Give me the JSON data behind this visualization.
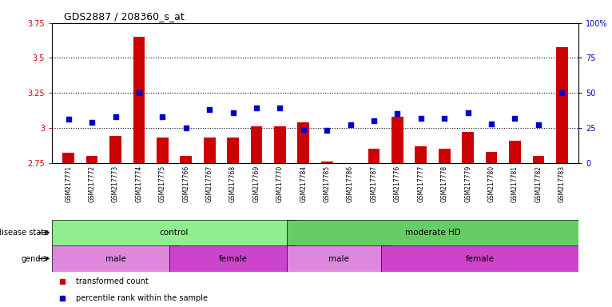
{
  "title": "GDS2887 / 208360_s_at",
  "samples": [
    "GSM217771",
    "GSM217772",
    "GSM217773",
    "GSM217774",
    "GSM217775",
    "GSM217766",
    "GSM217767",
    "GSM217768",
    "GSM217769",
    "GSM217770",
    "GSM217784",
    "GSM217785",
    "GSM217786",
    "GSM217787",
    "GSM217776",
    "GSM217777",
    "GSM217778",
    "GSM217779",
    "GSM217780",
    "GSM217781",
    "GSM217782",
    "GSM217783"
  ],
  "bar_values": [
    2.82,
    2.8,
    2.94,
    3.65,
    2.93,
    2.8,
    2.93,
    2.93,
    3.01,
    3.01,
    3.04,
    2.76,
    2.75,
    2.85,
    3.08,
    2.87,
    2.85,
    2.97,
    2.83,
    2.91,
    2.8,
    3.58
  ],
  "dot_values": [
    31,
    29,
    33,
    50,
    33,
    25,
    38,
    36,
    39,
    39,
    24,
    23,
    27,
    30,
    35,
    32,
    32,
    36,
    28,
    32,
    27,
    50
  ],
  "ylim_left": [
    2.75,
    3.75
  ],
  "ylim_right": [
    0,
    100
  ],
  "yticks_left": [
    2.75,
    3.0,
    3.25,
    3.5,
    3.75
  ],
  "yticks_right": [
    0,
    25,
    50,
    75,
    100
  ],
  "ytick_labels_left": [
    "2.75",
    "3",
    "3.25",
    "3.5",
    "3.75"
  ],
  "ytick_labels_right": [
    "0",
    "25",
    "50",
    "75",
    "100%"
  ],
  "hlines": [
    3.0,
    3.25,
    3.5
  ],
  "bar_color": "#cc0000",
  "dot_color": "#0000cc",
  "bar_bottom": 2.75,
  "disease_state_groups": [
    {
      "label": "control",
      "start": 0,
      "end": 10,
      "color": "#90ee90"
    },
    {
      "label": "moderate HD",
      "start": 10,
      "end": 22,
      "color": "#66cc66"
    }
  ],
  "gender_groups": [
    {
      "label": "male",
      "start": 0,
      "end": 5,
      "color": "#dd88dd"
    },
    {
      "label": "female",
      "start": 5,
      "end": 10,
      "color": "#cc44cc"
    },
    {
      "label": "male",
      "start": 10,
      "end": 14,
      "color": "#dd88dd"
    },
    {
      "label": "female",
      "start": 14,
      "end": 22,
      "color": "#cc44cc"
    }
  ],
  "legend_items": [
    {
      "label": "transformed count",
      "color": "#cc0000"
    },
    {
      "label": "percentile rank within the sample",
      "color": "#0000cc"
    }
  ],
  "axis_label_color_left": "#cc0000",
  "axis_label_color_right": "#0000cc",
  "xtick_bg_color": "#d0d0d0",
  "plot_bg": "#ffffff",
  "figsize": [
    7.66,
    3.84
  ],
  "dpi": 100
}
